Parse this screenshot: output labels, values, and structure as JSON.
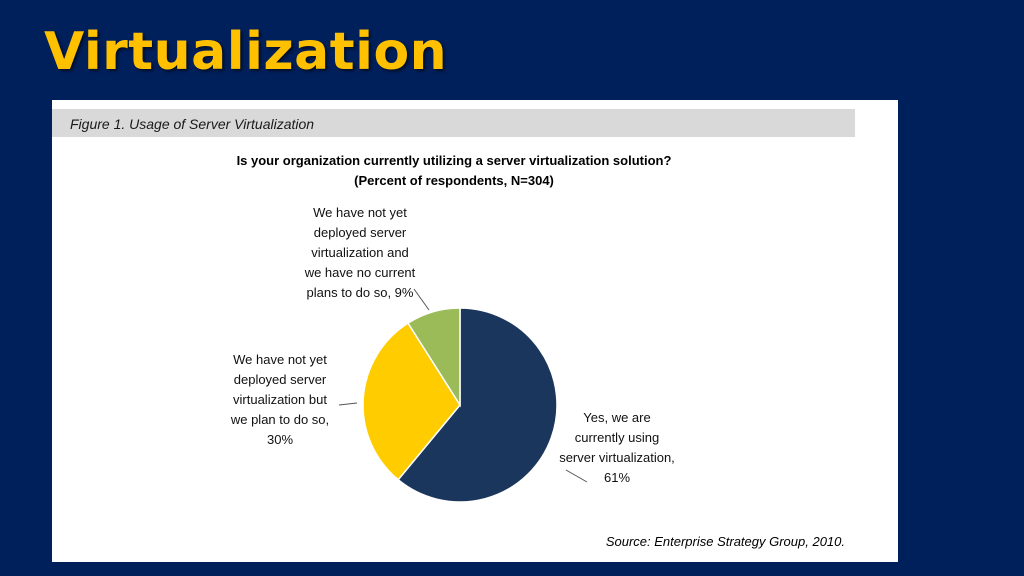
{
  "slide": {
    "title": "Virtualization"
  },
  "figure": {
    "caption": "Figure 1. Usage of Server Virtualization",
    "source": "Source: Enterprise Strategy Group, 2010."
  },
  "chart_data": {
    "type": "pie",
    "title": "Is your organization currently utilizing a server virtualization solution?",
    "subtitle": "(Percent of respondents, N=304)",
    "slices": [
      {
        "label_lines": [
          "Yes, we are",
          "currently using",
          "server virtualization,",
          "61%"
        ],
        "value": 61,
        "color": "#1b365d"
      },
      {
        "label_lines": [
          "We have not yet",
          "deployed server",
          "virtualization but",
          "we plan to do so,",
          "30%"
        ],
        "value": 30,
        "color": "#ffcc00"
      },
      {
        "label_lines": [
          "We have not yet",
          "deployed server",
          "virtualization and",
          "we have no current",
          "plans to do so, 9%"
        ],
        "value": 9,
        "color": "#9bbb59"
      }
    ]
  }
}
